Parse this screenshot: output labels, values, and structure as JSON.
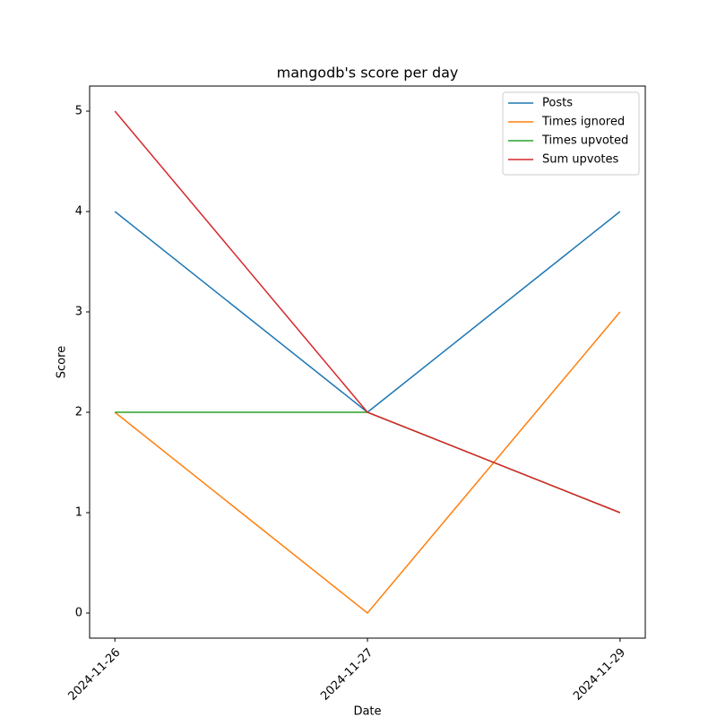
{
  "chart_data": {
    "type": "line",
    "title": "mangodb's score per day",
    "xlabel": "Date",
    "ylabel": "Score",
    "categories": [
      "2024-11-26",
      "2024-11-27",
      "2024-11-29"
    ],
    "series": [
      {
        "name": "Posts",
        "color": "#1f77b4",
        "values": [
          4,
          2,
          4
        ]
      },
      {
        "name": "Times ignored",
        "color": "#ff7f0e",
        "values": [
          2,
          0,
          3
        ]
      },
      {
        "name": "Times upvoted",
        "color": "#2ca02c",
        "values": [
          2,
          2,
          1
        ]
      },
      {
        "name": "Sum upvotes",
        "color": "#d62728",
        "values": [
          5,
          2,
          1
        ]
      }
    ],
    "ylim": [
      -0.25,
      5.25
    ],
    "yticks": [
      0,
      1,
      2,
      3,
      4,
      5
    ],
    "grid": false,
    "legend": "upper right"
  }
}
